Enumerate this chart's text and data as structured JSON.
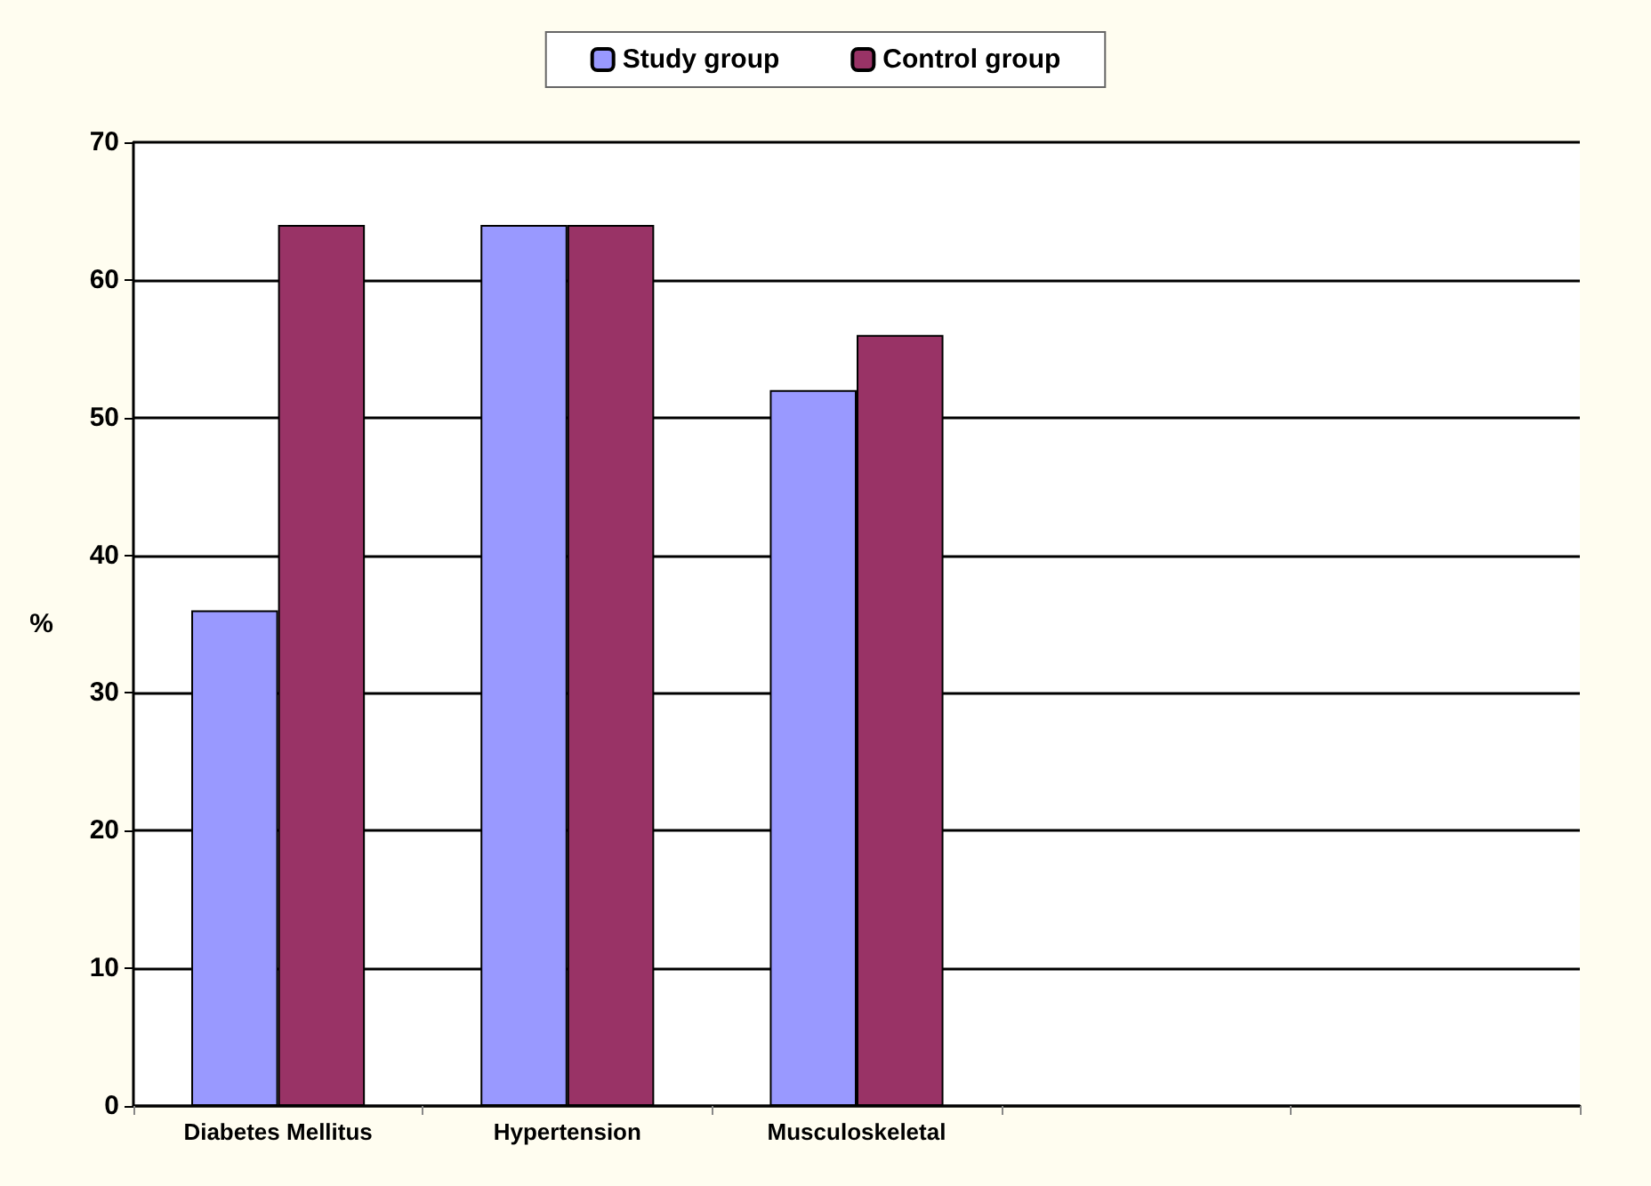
{
  "chart_data": {
    "type": "bar",
    "ylabel": "%",
    "categories": [
      "Diabetes Mellitus",
      "Hypertension",
      "Musculoskeletal",
      null,
      null
    ],
    "series": [
      {
        "name": "Study group",
        "color": "#9999ff",
        "values": [
          36,
          64,
          52,
          null,
          null
        ]
      },
      {
        "name": "Control group",
        "color": "#993366",
        "values": [
          64,
          64,
          56,
          null,
          null
        ]
      }
    ],
    "ylim": [
      0,
      70
    ],
    "yticks": [
      0,
      10,
      20,
      30,
      40,
      50,
      60,
      70
    ],
    "grid": "y",
    "legend": "top"
  }
}
